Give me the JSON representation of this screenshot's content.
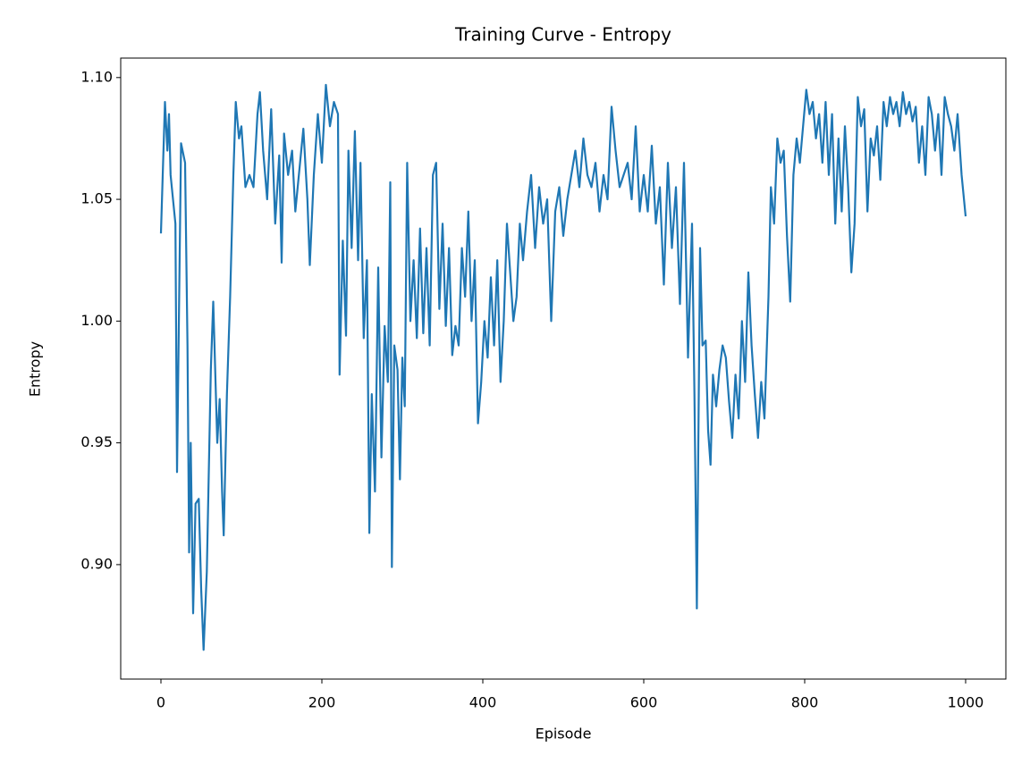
{
  "chart_data": {
    "type": "line",
    "title": "Training Curve - Entropy",
    "x_label": "Episode",
    "y_label": "Entropy",
    "color": "#1f77b4",
    "x": [
      0,
      5,
      8,
      10,
      12,
      15,
      18,
      20,
      25,
      30,
      33,
      35,
      37,
      40,
      43,
      47,
      50,
      53,
      57,
      62,
      65,
      70,
      73,
      76,
      78,
      82,
      86,
      90,
      93,
      97,
      100,
      105,
      110,
      115,
      120,
      123,
      127,
      132,
      137,
      142,
      147,
      150,
      153,
      158,
      163,
      167,
      172,
      177,
      182,
      185,
      190,
      195,
      200,
      205,
      210,
      215,
      220,
      222,
      226,
      230,
      233,
      237,
      241,
      245,
      248,
      252,
      256,
      259,
      262,
      266,
      270,
      274,
      278,
      282,
      285,
      287,
      290,
      294,
      297,
      300,
      303,
      306,
      310,
      314,
      318,
      322,
      326,
      330,
      334,
      338,
      342,
      346,
      350,
      354,
      358,
      362,
      366,
      370,
      374,
      378,
      382,
      386,
      390,
      394,
      398,
      402,
      406,
      410,
      414,
      418,
      422,
      426,
      430,
      434,
      438,
      442,
      446,
      450,
      455,
      460,
      465,
      470,
      475,
      480,
      485,
      490,
      495,
      500,
      505,
      510,
      515,
      520,
      525,
      530,
      535,
      540,
      545,
      550,
      555,
      560,
      565,
      570,
      575,
      580,
      585,
      590,
      595,
      600,
      605,
      610,
      615,
      620,
      625,
      630,
      635,
      640,
      645,
      650,
      655,
      660,
      663,
      666,
      670,
      673,
      677,
      680,
      683,
      686,
      690,
      694,
      698,
      702,
      706,
      710,
      714,
      718,
      722,
      726,
      730,
      734,
      738,
      742,
      746,
      750,
      755,
      758,
      762,
      766,
      770,
      774,
      778,
      782,
      786,
      790,
      794,
      798,
      802,
      806,
      810,
      814,
      818,
      822,
      826,
      830,
      834,
      838,
      842,
      846,
      850,
      854,
      858,
      862,
      866,
      870,
      874,
      878,
      882,
      886,
      890,
      894,
      898,
      902,
      906,
      910,
      914,
      918,
      922,
      926,
      930,
      934,
      938,
      942,
      946,
      950,
      954,
      958,
      962,
      966,
      970,
      974,
      978,
      982,
      986,
      990,
      995,
      1000
    ],
    "values": [
      1.036,
      1.09,
      1.07,
      1.085,
      1.06,
      1.05,
      1.04,
      0.938,
      1.073,
      1.065,
      0.99,
      0.905,
      0.95,
      0.88,
      0.925,
      0.927,
      0.89,
      0.865,
      0.897,
      0.98,
      1.008,
      0.95,
      0.968,
      0.93,
      0.912,
      0.97,
      1.01,
      1.06,
      1.09,
      1.075,
      1.08,
      1.055,
      1.06,
      1.055,
      1.085,
      1.094,
      1.07,
      1.05,
      1.087,
      1.04,
      1.068,
      1.024,
      1.077,
      1.06,
      1.07,
      1.045,
      1.062,
      1.079,
      1.05,
      1.023,
      1.06,
      1.085,
      1.065,
      1.097,
      1.08,
      1.09,
      1.085,
      0.978,
      1.033,
      0.994,
      1.07,
      1.03,
      1.078,
      1.025,
      1.065,
      0.993,
      1.025,
      0.913,
      0.97,
      0.93,
      1.022,
      0.944,
      0.998,
      0.975,
      1.057,
      0.899,
      0.99,
      0.98,
      0.935,
      0.985,
      0.965,
      1.065,
      1.0,
      1.025,
      0.993,
      1.038,
      0.995,
      1.03,
      0.99,
      1.06,
      1.065,
      1.005,
      1.04,
      0.998,
      1.03,
      0.986,
      0.998,
      0.99,
      1.03,
      1.01,
      1.045,
      1.0,
      1.025,
      0.958,
      0.975,
      1.0,
      0.985,
      1.018,
      0.99,
      1.025,
      0.975,
      1.0,
      1.04,
      1.02,
      1.0,
      1.01,
      1.04,
      1.025,
      1.045,
      1.06,
      1.03,
      1.055,
      1.04,
      1.05,
      1.0,
      1.045,
      1.055,
      1.035,
      1.05,
      1.06,
      1.07,
      1.055,
      1.075,
      1.06,
      1.055,
      1.065,
      1.045,
      1.06,
      1.05,
      1.088,
      1.07,
      1.055,
      1.06,
      1.065,
      1.05,
      1.08,
      1.045,
      1.06,
      1.045,
      1.072,
      1.04,
      1.055,
      1.015,
      1.065,
      1.03,
      1.055,
      1.007,
      1.065,
      0.985,
      1.04,
      0.97,
      0.882,
      1.03,
      0.99,
      0.992,
      0.955,
      0.941,
      0.978,
      0.965,
      0.98,
      0.99,
      0.985,
      0.967,
      0.952,
      0.978,
      0.96,
      1.0,
      0.975,
      1.02,
      0.99,
      0.97,
      0.952,
      0.975,
      0.96,
      1.01,
      1.055,
      1.04,
      1.075,
      1.065,
      1.07,
      1.035,
      1.008,
      1.06,
      1.075,
      1.065,
      1.08,
      1.095,
      1.085,
      1.09,
      1.075,
      1.085,
      1.065,
      1.09,
      1.06,
      1.085,
      1.04,
      1.075,
      1.045,
      1.08,
      1.055,
      1.02,
      1.04,
      1.092,
      1.08,
      1.087,
      1.045,
      1.075,
      1.068,
      1.08,
      1.058,
      1.09,
      1.08,
      1.092,
      1.085,
      1.09,
      1.08,
      1.094,
      1.085,
      1.09,
      1.082,
      1.088,
      1.065,
      1.08,
      1.06,
      1.092,
      1.085,
      1.07,
      1.085,
      1.06,
      1.092,
      1.085,
      1.08,
      1.07,
      1.085,
      1.06,
      1.043
    ],
    "xlim": [
      -50,
      1050
    ],
    "ylim": [
      0.853,
      1.108
    ],
    "xticks": [
      0,
      200,
      400,
      600,
      800,
      1000
    ],
    "yticks": [
      {
        "value": 0.9,
        "label": "0.90"
      },
      {
        "value": 0.95,
        "label": "0.95"
      },
      {
        "value": 1.0,
        "label": "1.00"
      },
      {
        "value": 1.05,
        "label": "1.05"
      },
      {
        "value": 1.1,
        "label": "1.10"
      }
    ],
    "grid": false
  }
}
